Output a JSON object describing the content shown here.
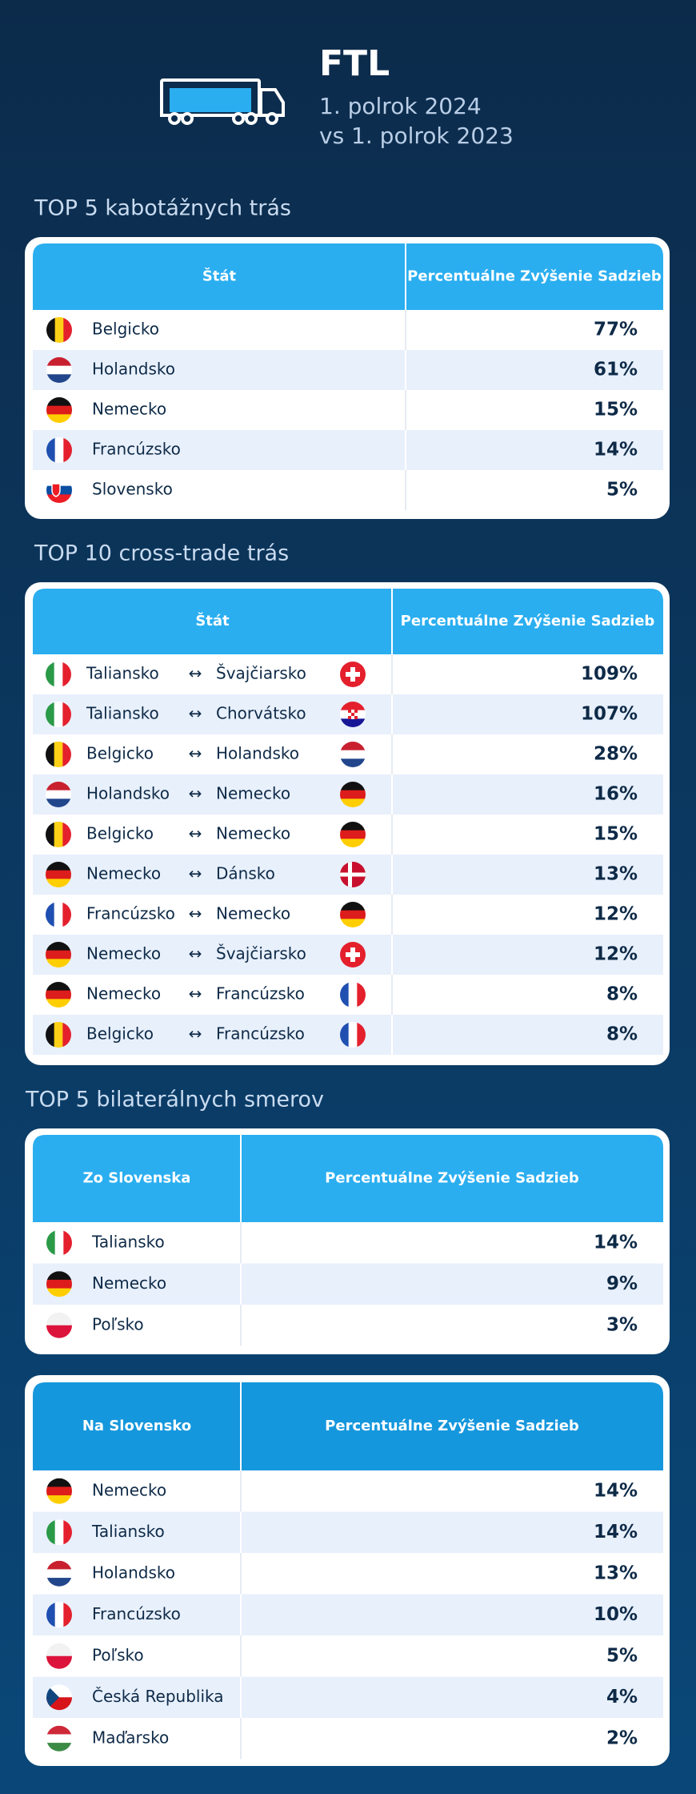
{
  "header": {
    "title": "FTL",
    "subtitle_line1": "1. polrok 2024",
    "subtitle_line2": "vs 1. polrok 2023"
  },
  "kabotaz": {
    "title": "TOP 5 kabotážnych trás",
    "headers": [
      "Štát",
      "Percentuálne Zvýšenie Sadzieb"
    ],
    "rows": [
      {
        "country": "Belgicko",
        "value": "77%"
      },
      {
        "country": "Holandsko",
        "value": "61%"
      },
      {
        "country": "Nemecko",
        "value": "15%"
      },
      {
        "country": "Francúzsko",
        "value": "14%"
      },
      {
        "country": "Slovensko",
        "value": "5%"
      }
    ]
  },
  "crosstrade": {
    "title": "TOP 10 cross-trade trás",
    "headers": [
      "Štát",
      "Percentuálne Zvýšenie Sadzieb"
    ],
    "separator": "↔",
    "rows": [
      {
        "from": "Taliansko",
        "to": "Švajčiarsko",
        "value": "109%"
      },
      {
        "from": "Taliansko",
        "to": "Chorvátsko",
        "value": "107%"
      },
      {
        "from": "Belgicko",
        "to": "Holandsko",
        "value": "28%"
      },
      {
        "from": "Holandsko",
        "to": "Nemecko",
        "value": "16%"
      },
      {
        "from": "Belgicko",
        "to": "Nemecko",
        "value": "15%"
      },
      {
        "from": "Nemecko",
        "to": "Dánsko",
        "value": "13%"
      },
      {
        "from": "Francúzsko",
        "to": "Nemecko",
        "value": "12%"
      },
      {
        "from": "Nemecko",
        "to": "Švajčiarsko",
        "value": "12%"
      },
      {
        "from": "Nemecko",
        "to": "Francúzsko",
        "value": "8%"
      },
      {
        "from": "Belgicko",
        "to": "Francúzsko",
        "value": "8%"
      }
    ]
  },
  "bilateral": {
    "title": "TOP 5 bilaterálnych smerov",
    "from_slovakia": {
      "headers": [
        "Zo Slovenska",
        "Percentuálne Zvýšenie Sadzieb"
      ],
      "rows": [
        {
          "country": "Taliansko",
          "value": "14%"
        },
        {
          "country": "Nemecko",
          "value": "9%"
        },
        {
          "country": "Poľsko",
          "value": "3%"
        }
      ]
    },
    "to_slovakia": {
      "headers": [
        "Na Slovensko",
        "Percentuálne Zvýšenie Sadzieb"
      ],
      "rows": [
        {
          "country": "Nemecko",
          "value": "14%"
        },
        {
          "country": "Taliansko",
          "value": "14%"
        },
        {
          "country": "Holandsko",
          "value": "13%"
        },
        {
          "country": "Francúzsko",
          "value": "10%"
        },
        {
          "country": "Poľsko",
          "value": "5%"
        },
        {
          "country": "Česká Republika",
          "value": "4%"
        },
        {
          "country": "Maďarsko",
          "value": "2%"
        }
      ]
    }
  }
}
